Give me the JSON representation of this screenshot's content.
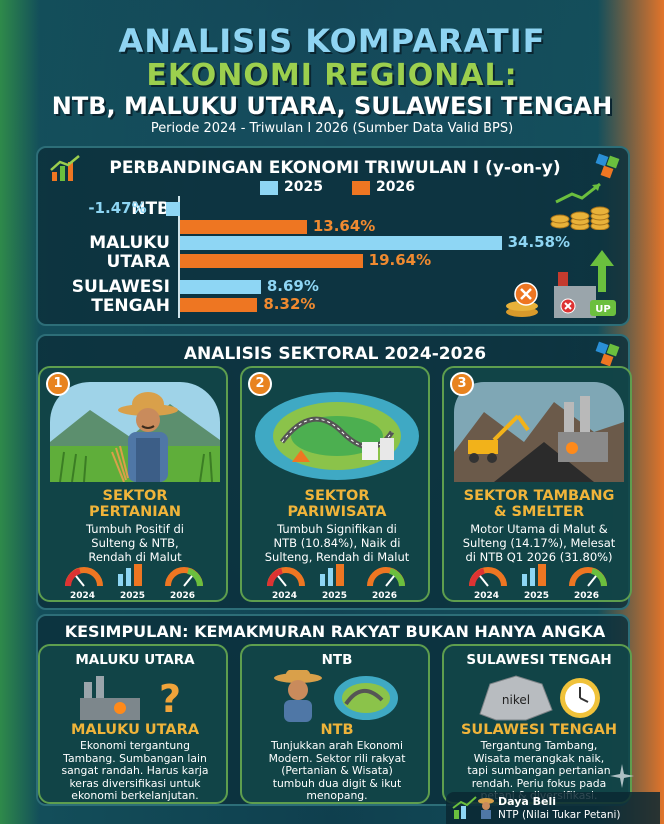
{
  "header": {
    "line1": "ANALISIS KOMPARATIF",
    "line2": "EKONOMI REGIONAL:",
    "line3": "NTB, MALUKU UTARA, SULAWESI TENGAH",
    "period": "Periode 2024 - Triwulan I 2026 (Sumber Data Valid BPS)"
  },
  "comparison": {
    "title": "PERBANDINGAN EKONOMI TRIWULAN I (y-on-y)",
    "legend": [
      {
        "label": "2025",
        "color": "#8ed6f4"
      },
      {
        "label": "2026",
        "color": "#ee7622"
      }
    ]
  },
  "chart_data": {
    "type": "bar",
    "title": "PERBANDINGAN EKONOMI TRIWULAN I (y-on-y)",
    "categories": [
      "NTB",
      "MALUKU UTARA",
      "SULAWESI TENGAH"
    ],
    "series": [
      {
        "name": "2025",
        "values": [
          -1.47,
          34.58,
          8.69
        ]
      },
      {
        "name": "2026",
        "values": [
          13.64,
          19.64,
          8.32
        ]
      }
    ],
    "labels": {
      "s2025": [
        "-1.47%",
        "34.58%",
        "8.69%"
      ],
      "s2026": [
        "13.64%",
        "19.64%",
        "8.32%"
      ]
    },
    "region_labels": [
      [
        "NTB"
      ],
      [
        "MALUKU",
        "UTARA"
      ],
      [
        "SULAWESI",
        "TENGAH"
      ]
    ]
  },
  "sectoral": {
    "title": "ANALISIS SEKTORAL 2024-2026",
    "cards": [
      {
        "num": "1",
        "title1": "SEKTOR",
        "title2": "PERTANIAN",
        "text": [
          "Tumbuh Positif di",
          "Sulteng & NTB,",
          "Rendah di Malut"
        ],
        "years": [
          "2024",
          "2025",
          "2026"
        ]
      },
      {
        "num": "2",
        "title1": "SEKTOR",
        "title2": "PARIWISATA",
        "text": [
          "Tumbuh Signifikan di",
          "NTB (10.84%), Naik di",
          "Sulteng, Rendah di Malut"
        ],
        "years": [
          "2024",
          "2025",
          "2026"
        ]
      },
      {
        "num": "3",
        "title1": "SEKTOR TAMBANG",
        "title2": "& SMELTER",
        "text": [
          "Motor Utama di Malut &",
          "Sulteng (14.17%), Melesat",
          "di NTB Q1 2026 (31.80%)"
        ],
        "years": [
          "2024",
          "2025",
          "2026"
        ]
      }
    ]
  },
  "conclusion": {
    "title": "KESIMPULAN: KEMAKMURAN RAKYAT BUKAN HANYA ANGKA",
    "cards": [
      {
        "head": "MALUKU UTARA",
        "sub": "MALUKU UTARA",
        "text": [
          "Ekonomi tergantung",
          "Tambang. Sumbangan lain",
          "sangat randah. Harus karja",
          "keras diversifikasi untuk",
          "ekonomi berkelanjutan."
        ]
      },
      {
        "head": "NTB",
        "sub": "NTB",
        "text": [
          "Tunjukkan arah Ekonomi",
          "Modern. Sektor rili rakyat",
          "(Pertanian & Wisata)",
          "tumbuh dua digit & ikut",
          "menopang."
        ]
      },
      {
        "head": "SULAWESI TENGAH",
        "sub": "SULAWESI TENGAH",
        "text": [
          "Tergantung Tambang,",
          "Wisata merangkak naik,",
          "tapi sumbangan pertanian",
          "rendah. Periu fokus pada",
          "petani & diversifikasi."
        ]
      }
    ],
    "nikel_label": "nikel"
  },
  "footer": {
    "line1": "Daya Beli",
    "line2": "NTP (Nilai Tukar Petani)"
  },
  "up_label": "UP"
}
